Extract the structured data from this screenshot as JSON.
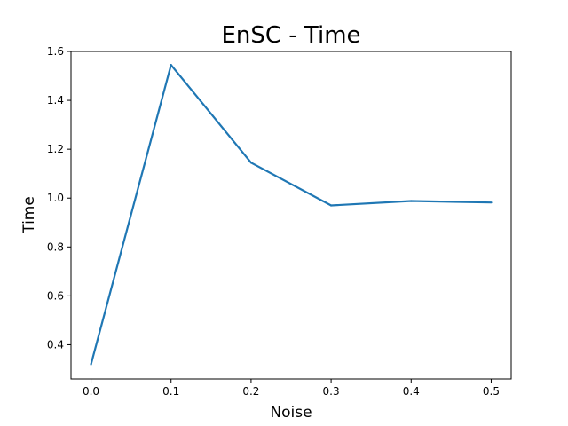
{
  "chart_data": {
    "type": "line",
    "title": "EnSC - Time",
    "xlabel": "Noise",
    "ylabel": "Time",
    "x": [
      0.0,
      0.1,
      0.2,
      0.3,
      0.4,
      0.5
    ],
    "series": [
      {
        "values": [
          0.32,
          1.545,
          1.145,
          0.97,
          0.988,
          0.982
        ],
        "color": "#1f77b4"
      }
    ],
    "xlim": [
      -0.025,
      0.525
    ],
    "ylim": [
      0.26,
      1.6
    ],
    "xticks": [
      0.0,
      0.1,
      0.2,
      0.3,
      0.4,
      0.5
    ],
    "xtick_labels": [
      "0.0",
      "0.1",
      "0.2",
      "0.3",
      "0.4",
      "0.5"
    ],
    "yticks": [
      0.4,
      0.6,
      0.8,
      1.0,
      1.2,
      1.4,
      1.6
    ],
    "ytick_labels": [
      "0.4",
      "0.6",
      "0.8",
      "1.0",
      "1.2",
      "1.4",
      "1.6"
    ],
    "grid": false,
    "legend": "none"
  }
}
